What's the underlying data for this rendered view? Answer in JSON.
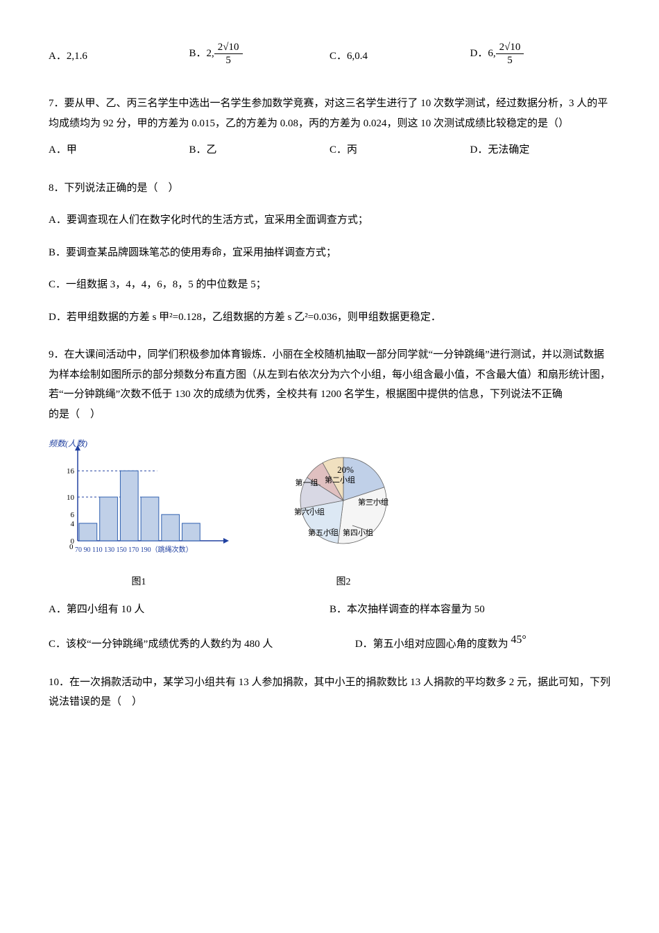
{
  "q6": {
    "optPrefix": "A．",
    "A": "2,1.6",
    "Bprefix": "B．",
    "B": "2,",
    "B_frac_num": "2√10",
    "B_frac_den": "5",
    "Cprefix": "C．",
    "C": "6,0.4",
    "Dprefix": "D．",
    "D": "6,",
    "D_frac_num": "2√10",
    "D_frac_den": "5"
  },
  "q7": {
    "text": "7．要从甲、乙、丙三名学生中选出一名学生参加数学竞赛，对这三名学生进行了 10 次数学测试，经过数据分析，3 人的平均成绩均为 92 分，甲的方差为 0.015，乙的方差为 0.08，丙的方差为 0.024，则这 10 次测试成绩比较稳定的是（）",
    "A": "A．甲",
    "B": "B．乙",
    "C": "C．丙",
    "D": "D．无法确定"
  },
  "q8": {
    "text": "8．下列说法正确的是（　）",
    "A": "A．要调查现在人们在数字化时代的生活方式，宜采用全面调查方式；",
    "B": "B．要调查某品牌圆珠笔芯的使用寿命，宜采用抽样调查方式；",
    "C": "C．一组数据 3，4，4，6，8，5 的中位数是 5；",
    "D": "D．若甲组数据的方差 s 甲²=0.128，乙组数据的方差 s 乙²=0.036，则甲组数据更稳定．"
  },
  "q9": {
    "text_a": "9．在大课间活动中，同学们积极参加体育锻炼．小丽在全校随机抽取一部分同学就“一分钟跳绳”进行测试，并以测试数据为样本绘制如图所示的部分频数分布直方图（从左到右依次分为六个小组，每小组含最小值，不含最大值）和扇形统计图，若“一分钟跳绳”次数不低于 130 次的成绩为优秀，全校共有 1200 名学生，根据图中提供的信息，下列说法",
    "text_b": "的是（　）",
    "incorrect": "不正确",
    "histogram": {
      "ylabel": "频数(人数)",
      "xlabel": "70 90 110 130 150 170 190（跳绳次数）",
      "yticks": [
        0,
        4,
        6,
        10,
        16
      ],
      "bars": [
        4,
        10,
        16,
        10,
        6,
        4
      ],
      "max": 20,
      "color": "#c0d0e8"
    },
    "pie": {
      "slices": [
        {
          "label": "第二小组",
          "value": 20,
          "color": "#c0d0e8",
          "text": "20%",
          "sub": "第二小组"
        },
        {
          "label": "第三小组",
          "value": 32,
          "color": "#f5f5f5",
          "text": "第三小组"
        },
        {
          "label": "第四小组",
          "value": 20,
          "color": "#dce8f4",
          "text": "第四小组"
        },
        {
          "label": "第五小组",
          "value": 12,
          "color": "#d8d8e4",
          "text": "第五小组"
        },
        {
          "label": "第六小组",
          "value": 8,
          "color": "#e0c0c0",
          "text": "第六小组"
        },
        {
          "label": "第一小组",
          "value": 8,
          "color": "#f0e0c0",
          "text": "第一组"
        }
      ]
    },
    "caption1": "图1",
    "caption2": "图2",
    "A": "A．第四小组有 10 人",
    "B": "B．本次抽样调查的样本容量为 50",
    "C": "C．该校“一分钟跳绳”成绩优秀的人数约为 480 人",
    "D": "D．第五小组对应圆心角的度数为",
    "D_deg": "45°"
  },
  "q10": {
    "text": "10．在一次捐款活动中，某学习小组共有 13 人参加捐款，其中小王的捐款数比 13 人捐款的平均数多 2 元，据此可知，下列说法错误的是（　）"
  }
}
